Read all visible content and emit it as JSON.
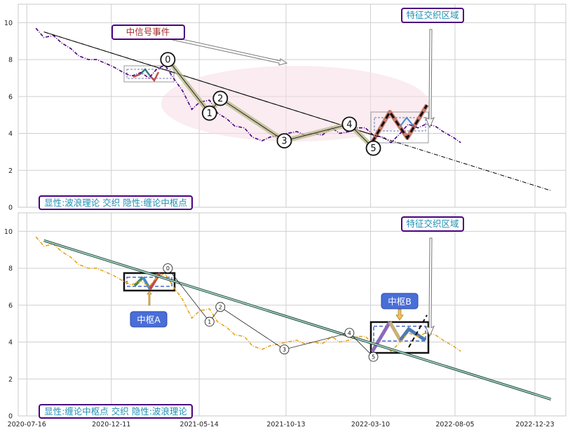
{
  "chart_data": [
    {
      "type": "line",
      "panel": "top",
      "ylim": [
        0,
        11
      ],
      "yticks": [
        0,
        2,
        4,
        6,
        8,
        10
      ],
      "xlim": [
        "2020-07-01",
        "2023-02-15"
      ],
      "price_series": {
        "color": "#4b0082",
        "style": "dash-dot",
        "x": [
          "2020-08-01",
          "2020-08-15",
          "2020-09-01",
          "2020-09-15",
          "2020-10-01",
          "2020-10-15",
          "2020-11-01",
          "2020-11-15",
          "2020-12-01",
          "2020-12-15",
          "2021-01-01",
          "2021-01-15",
          "2021-02-01",
          "2021-02-15",
          "2021-03-01",
          "2021-03-15",
          "2021-04-01",
          "2021-04-15",
          "2021-05-01",
          "2021-05-15",
          "2021-06-01",
          "2021-06-15",
          "2021-07-01",
          "2021-07-15",
          "2021-08-01",
          "2021-08-15",
          "2021-09-01",
          "2021-09-15",
          "2021-10-01",
          "2021-10-15",
          "2021-11-01",
          "2021-11-15",
          "2021-12-01",
          "2021-12-15",
          "2022-01-01",
          "2022-01-15",
          "2022-02-01",
          "2022-02-15",
          "2022-03-01",
          "2022-03-15",
          "2022-04-01",
          "2022-04-15",
          "2022-05-01",
          "2022-05-15",
          "2022-06-01",
          "2022-06-15",
          "2022-07-01",
          "2022-07-15",
          "2022-08-01",
          "2022-08-15"
        ],
        "y": [
          9.7,
          9.2,
          9.3,
          8.9,
          8.6,
          8.2,
          8.0,
          8.0,
          7.8,
          7.6,
          7.3,
          7.1,
          7.3,
          7.0,
          7.5,
          7.7,
          6.9,
          6.3,
          5.3,
          5.7,
          5.8,
          5.1,
          4.8,
          4.4,
          4.3,
          3.8,
          3.6,
          3.8,
          3.9,
          4.0,
          4.1,
          3.9,
          4.0,
          3.9,
          4.3,
          4.0,
          4.1,
          4.3,
          4.3,
          3.9,
          3.8,
          3.5,
          4.0,
          4.5,
          4.3,
          4.5,
          4.4,
          4.1,
          3.8,
          3.5
        ]
      },
      "trend_line": {
        "x": [
          "2020-08-15",
          "2023-01-20"
        ],
        "y": [
          9.5,
          0.9
        ],
        "style": "dash-dot",
        "color": "#000000"
      },
      "wave_points": [
        {
          "label": "0",
          "x": "2021-03-20",
          "y": 8.0
        },
        {
          "label": "1",
          "x": "2021-06-01",
          "y": 5.1
        },
        {
          "label": "2",
          "x": "2021-06-20",
          "y": 5.9
        },
        {
          "label": "3",
          "x": "2021-10-10",
          "y": 3.6
        },
        {
          "label": "4",
          "x": "2022-02-01",
          "y": 4.5
        },
        {
          "label": "5",
          "x": "2022-03-15",
          "y": 3.2
        }
      ],
      "text_boxes": [
        {
          "text": "中信号事件",
          "color": "#a52a2a"
        },
        {
          "text": "特征交织区域",
          "color": "#1f8fb5"
        },
        {
          "text": "显性:波浪理论 交织 隐性:缠论中枢点",
          "color": "#1f8fb5"
        }
      ]
    },
    {
      "type": "line",
      "panel": "bottom",
      "ylim": [
        0,
        11
      ],
      "yticks": [
        0,
        2,
        4,
        6,
        8,
        10
      ],
      "xlim": [
        "2020-07-01",
        "2023-02-15"
      ],
      "xticks": [
        "2020-07-16",
        "2020-12-11",
        "2021-05-14",
        "2021-10-13",
        "2022-03-10",
        "2022-08-05",
        "2022-12-23"
      ],
      "price_series": {
        "color": "#e8a317",
        "style": "dash-dot",
        "x": [
          "2020-08-01",
          "2020-08-15",
          "2020-09-01",
          "2020-09-15",
          "2020-10-01",
          "2020-10-15",
          "2020-11-01",
          "2020-11-15",
          "2020-12-01",
          "2020-12-15",
          "2021-01-01",
          "2021-01-15",
          "2021-02-01",
          "2021-02-15",
          "2021-03-01",
          "2021-03-15",
          "2021-04-01",
          "2021-04-15",
          "2021-05-01",
          "2021-05-15",
          "2021-06-01",
          "2021-06-15",
          "2021-07-01",
          "2021-07-15",
          "2021-08-01",
          "2021-08-15",
          "2021-09-01",
          "2021-09-15",
          "2021-10-01",
          "2021-10-15",
          "2021-11-01",
          "2021-11-15",
          "2021-12-01",
          "2021-12-15",
          "2022-01-01",
          "2022-01-15",
          "2022-02-01",
          "2022-02-15",
          "2022-03-01",
          "2022-03-15",
          "2022-04-01",
          "2022-04-15",
          "2022-05-01",
          "2022-05-15",
          "2022-06-01",
          "2022-06-15",
          "2022-07-01",
          "2022-07-15",
          "2022-08-01",
          "2022-08-15"
        ],
        "y": [
          9.7,
          9.2,
          9.3,
          8.9,
          8.6,
          8.2,
          8.0,
          8.0,
          7.8,
          7.6,
          7.3,
          7.1,
          7.3,
          7.0,
          7.5,
          7.7,
          6.9,
          6.3,
          5.3,
          5.7,
          5.8,
          5.1,
          4.8,
          4.4,
          4.3,
          3.8,
          3.6,
          3.8,
          3.9,
          4.0,
          4.1,
          3.9,
          4.0,
          3.9,
          4.3,
          4.0,
          4.1,
          4.3,
          4.3,
          3.9,
          3.8,
          3.5,
          4.0,
          4.5,
          4.3,
          4.5,
          4.4,
          4.1,
          3.8,
          3.5
        ]
      },
      "trend_line": {
        "x": [
          "2020-08-15",
          "2023-01-20"
        ],
        "y": [
          9.5,
          0.9
        ],
        "color": "#1a4a3a"
      },
      "wave_points": [
        {
          "label": "0",
          "x": "2021-03-20",
          "y": 8.0
        },
        {
          "label": "1",
          "x": "2021-06-01",
          "y": 5.1
        },
        {
          "label": "2",
          "x": "2021-06-20",
          "y": 5.9
        },
        {
          "label": "3",
          "x": "2021-10-10",
          "y": 3.6
        },
        {
          "label": "4",
          "x": "2022-02-01",
          "y": 4.5
        },
        {
          "label": "5",
          "x": "2022-03-15",
          "y": 3.2
        }
      ],
      "pivots": [
        {
          "label": "中枢A",
          "x0": "2021-01-05",
          "x1": "2021-04-01",
          "y0": 6.8,
          "y1": 7.7
        },
        {
          "label": "中枢B",
          "x0": "2022-03-10",
          "x1": "2022-07-25",
          "y0": 3.5,
          "y1": 5.1
        }
      ],
      "text_boxes": [
        {
          "text": "特征交织区域",
          "color": "#1f8fb5"
        },
        {
          "text": "显性:缠论中枢点 交织 隐性:波浪理论",
          "color": "#1f8fb5"
        }
      ]
    }
  ]
}
